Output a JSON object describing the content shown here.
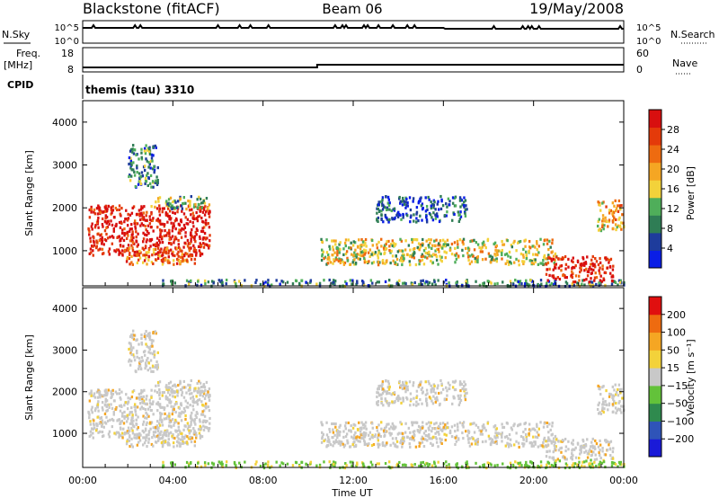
{
  "header": {
    "station": "Blackstone (fitACF)",
    "beam": "Beam 06",
    "date": "19/May/2008"
  },
  "top_panel": {
    "left_label": "N.Sky",
    "right_label": "N.Search",
    "left_ticks": [
      "10^5",
      "10^0"
    ],
    "right_ticks": [
      "10^5",
      "10^0"
    ]
  },
  "freq_panel": {
    "left_label_1": "Freq.",
    "left_label_2": "[MHz]",
    "right_label": "Nave",
    "left_ticks": [
      "18",
      "8"
    ],
    "right_ticks": [
      "60",
      "0"
    ]
  },
  "cpid": {
    "label": "CPID",
    "value": "themis (tau) 3310"
  },
  "colors": {
    "power": [
      "#0a1ee6",
      "#1e3c9c",
      "#2f7d55",
      "#4fae5a",
      "#f3d23a",
      "#f5a623",
      "#ee6b10",
      "#e43a0a",
      "#d80f0f"
    ],
    "velocity": [
      "#1a1ad8",
      "#2f54b8",
      "#2f8a4e",
      "#63c23a",
      "#c8c8c8",
      "#f3d23a",
      "#f5a623",
      "#ee6b10",
      "#e00f0f"
    ]
  },
  "chart_data": [
    {
      "type": "heatmap",
      "quantity": "power",
      "ylabel": "Slant Range [km]",
      "xlabel": "",
      "yticks": [
        "4000",
        "3000",
        "2000",
        "1000"
      ],
      "ylim": [
        180,
        4500
      ],
      "xlim": [
        0,
        24
      ],
      "colorbar_label": "Power [dB]",
      "colorbar_ticks": [
        "28",
        "24",
        "20",
        "16",
        "12",
        "8",
        "4"
      ],
      "colorbar_range": [
        0,
        30
      ],
      "regions": [
        {
          "x0": 0.2,
          "x1": 5.6,
          "y0": 900,
          "y1": 2100,
          "level": 8
        },
        {
          "x0": 3.0,
          "x1": 5.6,
          "y0": 2000,
          "y1": 2300,
          "level": 3
        },
        {
          "x0": 2.0,
          "x1": 3.3,
          "y0": 2500,
          "y1": 3500,
          "level": 2
        },
        {
          "x0": 1.8,
          "x1": 5.0,
          "y0": 700,
          "y1": 1100,
          "level": 6
        },
        {
          "x0": 3.5,
          "x1": 24,
          "y0": 200,
          "y1": 350,
          "level": 2
        },
        {
          "x0": 10.5,
          "x1": 21.0,
          "y0": 700,
          "y1": 1300,
          "level": 4
        },
        {
          "x0": 13.0,
          "x1": 17.0,
          "y0": 1700,
          "y1": 2300,
          "level": 1
        },
        {
          "x0": 20.5,
          "x1": 23.5,
          "y0": 300,
          "y1": 900,
          "level": 8
        },
        {
          "x0": 22.8,
          "x1": 24,
          "y0": 1500,
          "y1": 2200,
          "level": 5
        }
      ]
    },
    {
      "type": "heatmap",
      "quantity": "velocity",
      "ylabel": "Slant Range [km]",
      "xlabel": "Time UT",
      "yticks": [
        "4000",
        "3000",
        "2000",
        "1000"
      ],
      "ylim": [
        180,
        4500
      ],
      "xlim": [
        0,
        24
      ],
      "xticks": [
        "00:00",
        "04:00",
        "08:00",
        "12:00",
        "16:00",
        "20:00",
        "00:00"
      ],
      "colorbar_label": "Velocity [m s⁻¹]",
      "colorbar_ticks": [
        "200",
        "100",
        "50",
        "15",
        "−15",
        "−50",
        "−100",
        "−200"
      ],
      "colorbar_range": [
        -250,
        250
      ]
    }
  ]
}
